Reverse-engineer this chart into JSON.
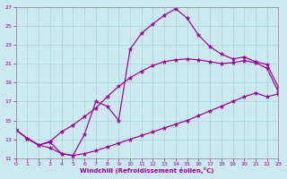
{
  "xlabel": "Windchill (Refroidissement éolien,°C)",
  "bg_color": "#cce8f0",
  "line_color": "#990099",
  "xlim": [
    0,
    23
  ],
  "ylim": [
    11,
    27
  ],
  "xticks": [
    0,
    1,
    2,
    3,
    4,
    5,
    6,
    7,
    8,
    9,
    10,
    11,
    12,
    13,
    14,
    15,
    16,
    17,
    18,
    19,
    20,
    21,
    22,
    23
  ],
  "yticks": [
    11,
    13,
    15,
    17,
    19,
    21,
    23,
    25,
    27
  ],
  "series": [
    {
      "x": [
        0,
        1,
        2,
        3,
        4,
        5,
        6,
        7,
        8,
        9,
        10,
        11,
        12,
        13,
        14,
        15,
        16,
        17,
        18,
        19,
        20,
        21,
        22,
        23
      ],
      "y": [
        14.0,
        13.1,
        12.4,
        12.1,
        11.5,
        11.3,
        11.5,
        11.8,
        12.2,
        12.6,
        13.0,
        13.4,
        13.8,
        14.2,
        14.6,
        15.0,
        15.5,
        16.0,
        16.5,
        17.0,
        17.5,
        17.9,
        17.5,
        17.8
      ]
    },
    {
      "x": [
        0,
        1,
        2,
        3,
        4,
        5,
        6,
        7,
        8,
        9,
        10,
        11,
        12,
        13,
        14,
        15,
        16,
        17,
        18,
        19,
        20,
        21,
        22,
        23
      ],
      "y": [
        14.0,
        13.1,
        12.4,
        12.8,
        13.8,
        14.5,
        15.4,
        16.3,
        17.5,
        18.6,
        19.5,
        20.2,
        20.8,
        21.2,
        21.4,
        21.5,
        21.4,
        21.2,
        21.0,
        21.1,
        21.3,
        21.1,
        20.5,
        18.0
      ]
    },
    {
      "x": [
        0,
        1,
        2,
        3,
        4,
        5,
        6,
        7,
        8,
        9,
        10,
        11,
        12,
        13,
        14,
        15,
        16,
        17,
        18,
        19,
        20,
        21,
        22,
        23
      ],
      "y": [
        14.0,
        13.1,
        12.4,
        12.7,
        11.5,
        11.3,
        13.5,
        17.0,
        16.5,
        15.0,
        22.5,
        24.2,
        25.2,
        26.1,
        26.8,
        25.8,
        24.0,
        22.8,
        22.0,
        21.5,
        21.7,
        21.2,
        20.9,
        18.5
      ]
    }
  ]
}
